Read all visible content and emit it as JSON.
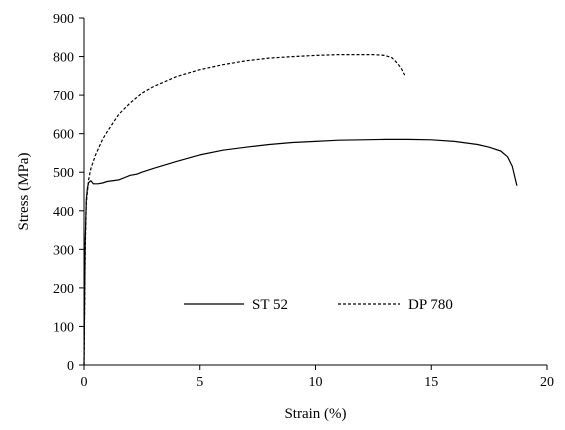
{
  "chart_data": {
    "type": "line",
    "title": "",
    "xlabel": "Strain (%)",
    "ylabel": "Stress (MPa)",
    "xlim": [
      0,
      20
    ],
    "ylim": [
      0,
      900
    ],
    "x_ticks": [
      0,
      5,
      10,
      15,
      20
    ],
    "y_ticks": [
      0,
      100,
      200,
      300,
      400,
      500,
      600,
      700,
      800,
      900
    ],
    "grid": false,
    "legend_position": "bottom-right",
    "series": [
      {
        "name": "ST 52",
        "line_style": "solid",
        "color": "#000000",
        "x": [
          0,
          0.05,
          0.1,
          0.15,
          0.2,
          0.3,
          0.4,
          0.6,
          0.8,
          1.0,
          1.5,
          2.0,
          2.3,
          2.5,
          3,
          4,
          5,
          6,
          7,
          8,
          9,
          10,
          11,
          12,
          13,
          14,
          15,
          16,
          17,
          17.5,
          18,
          18.3,
          18.5,
          18.6,
          18.7
        ],
        "y": [
          0,
          320,
          430,
          460,
          473,
          478,
          470,
          470,
          472,
          476,
          480,
          492,
          495,
          500,
          510,
          528,
          545,
          557,
          565,
          572,
          577,
          580,
          583,
          584,
          585,
          585,
          584,
          580,
          572,
          565,
          555,
          540,
          515,
          490,
          465
        ]
      },
      {
        "name": "DP 780",
        "line_style": "dashed",
        "color": "#000000",
        "x": [
          0,
          0.05,
          0.1,
          0.2,
          0.3,
          0.5,
          0.8,
          1.0,
          1.5,
          2,
          2.5,
          3,
          4,
          5,
          6,
          7,
          8,
          9,
          10,
          11,
          12,
          12.5,
          13,
          13.3,
          13.5,
          13.7,
          13.85
        ],
        "y": [
          0,
          300,
          420,
          480,
          510,
          545,
          585,
          605,
          650,
          680,
          705,
          722,
          748,
          766,
          779,
          789,
          796,
          800,
          803,
          805,
          805,
          805,
          803,
          797,
          785,
          770,
          752
        ]
      }
    ]
  }
}
